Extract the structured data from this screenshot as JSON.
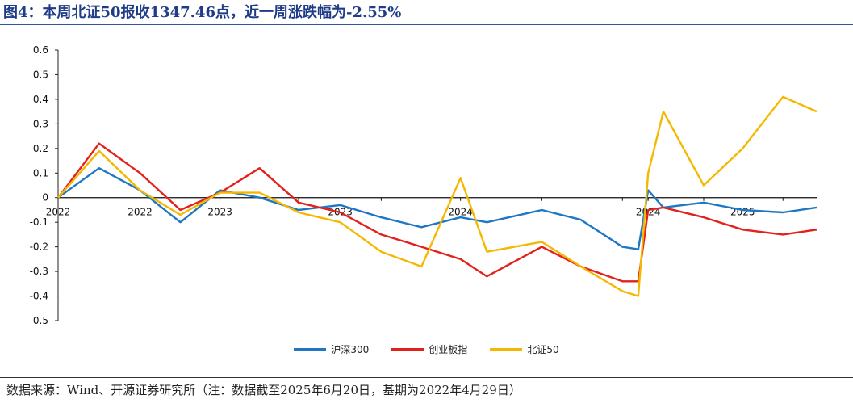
{
  "title": "图4：本周北证50报收1347.46点，近一周涨跌幅为-2.55%",
  "source": "数据来源：Wind、开源证券研究所（注：数据截至2025年6月20日，基期为2022年4月29日）",
  "chart_data": {
    "type": "line",
    "ylim": [
      -0.5,
      0.6
    ],
    "yticks": [
      -0.5,
      -0.4,
      -0.3,
      -0.2,
      -0.1,
      0,
      0.1,
      0.2,
      0.3,
      0.4,
      0.5,
      0.6
    ],
    "ytick_labels": [
      "-0.5",
      "-0.4",
      "-0.3",
      "-0.2",
      "-0.1",
      "0",
      "0.1",
      "0.2",
      "0.3",
      "0.4",
      "0.5",
      "0.6"
    ],
    "x": [
      "2022-04-29",
      "2022-06-30",
      "2022-08-31",
      "2022-10-31",
      "2022-12-30",
      "2023-02-28",
      "2023-04-28",
      "2023-06-30",
      "2023-08-31",
      "2023-10-31",
      "2023-12-29",
      "2024-02-07",
      "2024-04-30",
      "2024-06-28",
      "2024-08-30",
      "2024-09-23",
      "2024-10-08",
      "2024-10-31",
      "2024-12-31",
      "2025-02-28",
      "2025-04-30",
      "2025-06-20"
    ],
    "x_tick_labels": [
      "2022",
      "2022",
      "2023",
      "2023",
      "2024",
      "2024",
      "2025"
    ],
    "grid": false,
    "legend_position": "bottom",
    "series": [
      {
        "name": "沪深300",
        "color": "#1f77c4",
        "values": [
          0,
          0.12,
          0.03,
          -0.1,
          0.03,
          0.0,
          -0.05,
          -0.03,
          -0.08,
          -0.12,
          -0.08,
          -0.1,
          -0.05,
          -0.09,
          -0.2,
          -0.21,
          0.03,
          -0.04,
          -0.02,
          -0.05,
          -0.06,
          -0.04
        ]
      },
      {
        "name": "创业板指",
        "color": "#e3201b",
        "values": [
          0,
          0.22,
          0.1,
          -0.05,
          0.02,
          0.12,
          -0.02,
          -0.06,
          -0.15,
          -0.2,
          -0.25,
          -0.32,
          -0.2,
          -0.28,
          -0.34,
          -0.34,
          -0.05,
          -0.04,
          -0.08,
          -0.13,
          -0.15,
          -0.13
        ]
      },
      {
        "name": "北证50",
        "color": "#f5b800",
        "values": [
          0,
          0.19,
          0.03,
          -0.07,
          0.02,
          0.02,
          -0.06,
          -0.1,
          -0.22,
          -0.28,
          0.08,
          -0.22,
          -0.18,
          -0.28,
          -0.38,
          -0.4,
          0.1,
          0.35,
          0.05,
          0.2,
          0.41,
          0.35
        ]
      }
    ]
  }
}
